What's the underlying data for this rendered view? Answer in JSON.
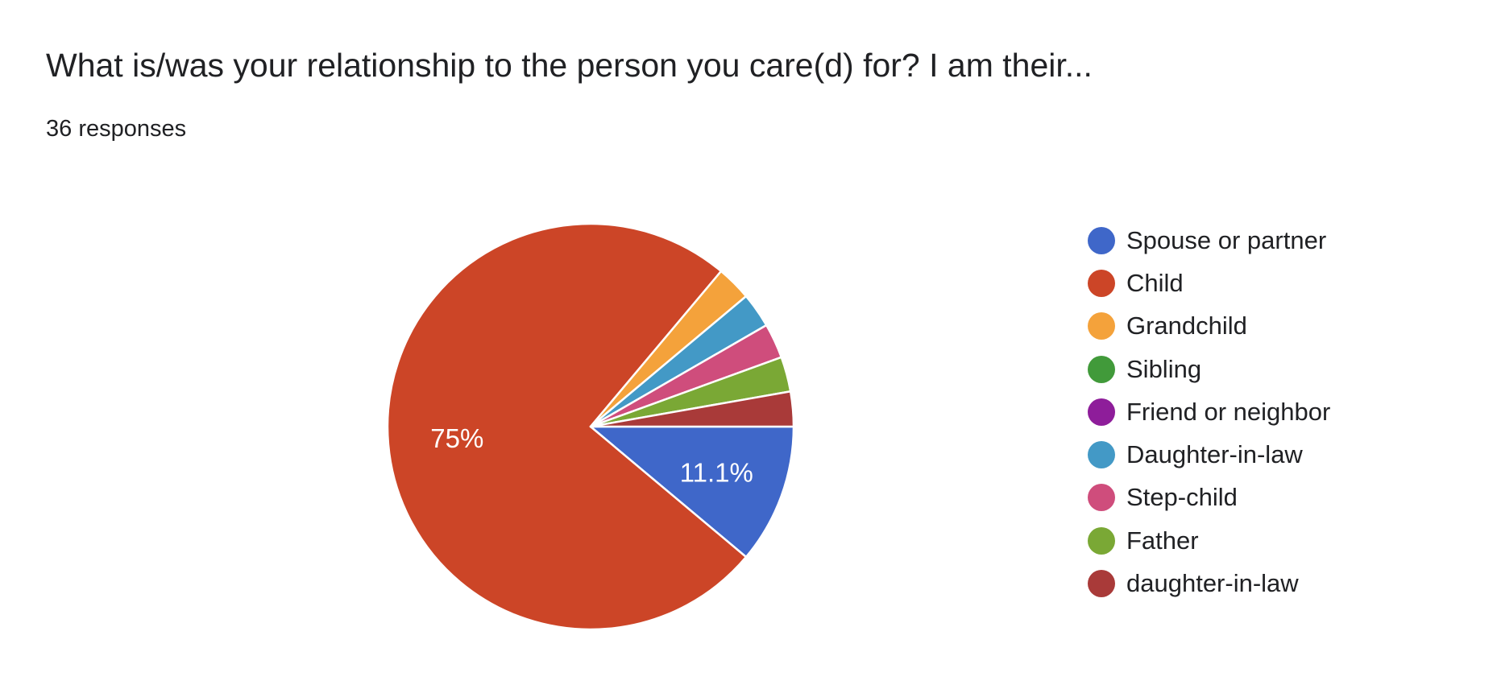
{
  "header": {
    "title": "What is/was your relationship to the person you care(d) for? I am their...",
    "responses": "36 responses"
  },
  "chart_data": {
    "type": "pie",
    "title": "What is/was your relationship to the person you care(d) for? I am their...",
    "subtitle": "36 responses",
    "legend_position": "right",
    "slices": [
      {
        "label": "Spouse or partner",
        "count": 4,
        "percent": 11.1,
        "color": "#3f67c9",
        "data_label": "11.1%"
      },
      {
        "label": "Child",
        "count": 27,
        "percent": 75,
        "color": "#cc4527",
        "data_label": "75%"
      },
      {
        "label": "Grandchild",
        "count": 1,
        "percent": 2.8,
        "color": "#f4a23b",
        "data_label": ""
      },
      {
        "label": "Sibling",
        "count": 0,
        "percent": 0,
        "color": "#419a3a",
        "data_label": ""
      },
      {
        "label": "Friend or neighbor",
        "count": 0,
        "percent": 0,
        "color": "#8e1d9a",
        "data_label": ""
      },
      {
        "label": "Daughter-in-law",
        "count": 1,
        "percent": 2.8,
        "color": "#4399c6",
        "data_label": ""
      },
      {
        "label": "Step-child",
        "count": 1,
        "percent": 2.8,
        "color": "#cf4d7c",
        "data_label": ""
      },
      {
        "label": "Father",
        "count": 1,
        "percent": 2.8,
        "color": "#7aa835",
        "data_label": ""
      },
      {
        "label": "daughter-in-law",
        "count": 1,
        "percent": 2.8,
        "color": "#a93a39",
        "data_label": ""
      }
    ]
  }
}
